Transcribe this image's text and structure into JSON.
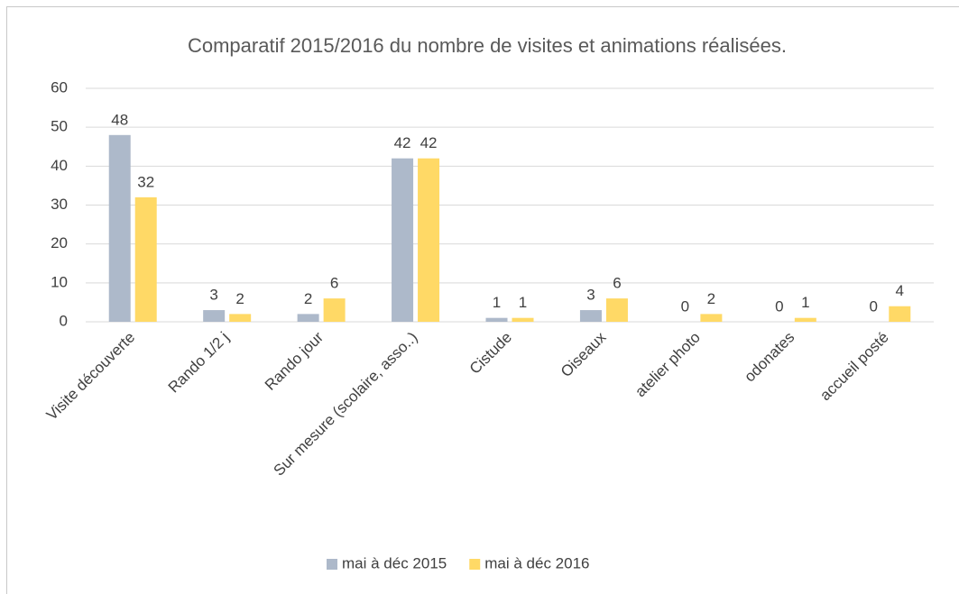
{
  "chart_data": {
    "type": "bar",
    "title": "Comparatif 2015/2016 du nombre de visites et animations réalisées.",
    "categories": [
      "Visite découverte",
      "Rando 1/2 j",
      "Rando jour",
      "Sur mesure (scolaire, asso..)",
      "Cistude",
      "Oiseaux",
      "atelier photo",
      "odonates",
      "accueil posté"
    ],
    "series": [
      {
        "name": "mai à déc 2015",
        "color": "#adb9ca",
        "values": [
          48,
          3,
          2,
          42,
          1,
          3,
          0,
          0,
          0
        ]
      },
      {
        "name": "mai à déc 2016",
        "color": "#ffd966",
        "values": [
          32,
          2,
          6,
          42,
          1,
          6,
          2,
          1,
          4
        ]
      }
    ],
    "ylim": [
      0,
      60
    ],
    "yticks": [
      0,
      10,
      20,
      30,
      40,
      50,
      60
    ],
    "grid": true,
    "legend": "bottom"
  }
}
